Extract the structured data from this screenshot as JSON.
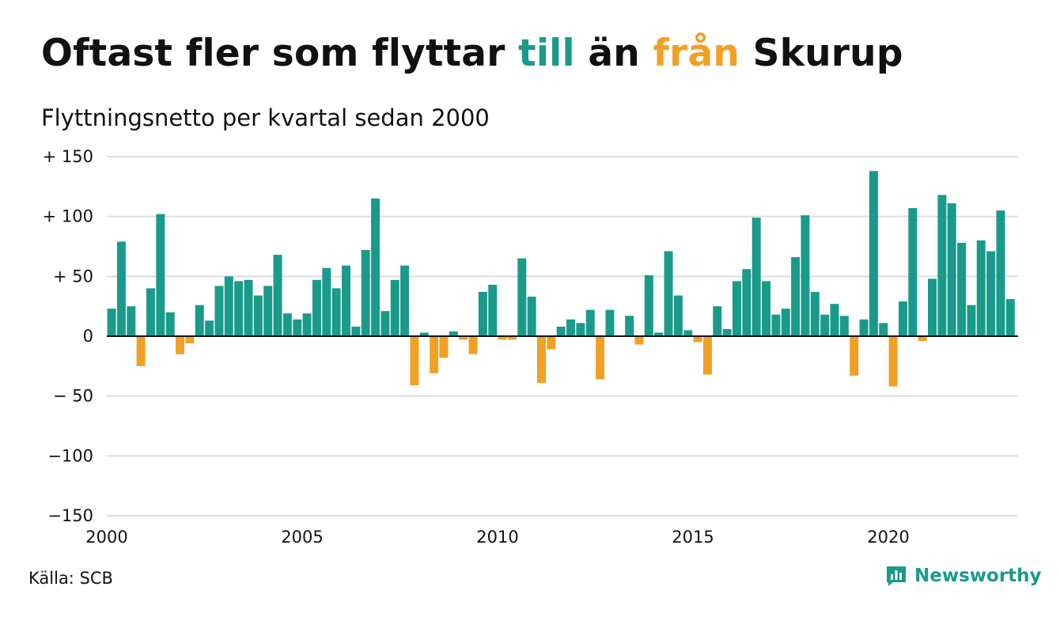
{
  "title": {
    "part1": "Oftast fler som flyttar ",
    "till": "till",
    "part2": " än ",
    "fran": "från",
    "part3": " Skurup"
  },
  "subtitle": "Flyttningsnetto per kvartal sedan 2000",
  "source": "Källa: SCB",
  "brand": "Newsworthy",
  "colors": {
    "positive": "#1a9a8a",
    "negative": "#f2a023",
    "grid": "#dddddd",
    "axis": "#111111"
  },
  "chart_data": {
    "type": "bar",
    "x_start": 2000,
    "periods_per_year": 4,
    "x_ticks": [
      "2000",
      "2005",
      "2010",
      "2015",
      "2020"
    ],
    "y_ticks": [
      "+ 150",
      "+ 100",
      "+  50",
      "0",
      "− 50",
      "−100",
      "−150"
    ],
    "ylim": [
      -150,
      150
    ],
    "values": [
      23,
      79,
      25,
      -25,
      40,
      102,
      20,
      -15,
      -6,
      26,
      13,
      42,
      50,
      46,
      47,
      34,
      42,
      68,
      19,
      14,
      19,
      47,
      57,
      40,
      59,
      8,
      72,
      115,
      21,
      47,
      59,
      -41,
      3,
      -31,
      -18,
      4,
      -3,
      -15,
      37,
      43,
      -3,
      -3,
      65,
      33,
      -39,
      -11,
      8,
      14,
      11,
      22,
      -36,
      22,
      0,
      17,
      -7,
      51,
      3,
      71,
      34,
      5,
      -5,
      -32,
      25,
      6,
      46,
      56,
      99,
      46,
      18,
      23,
      66,
      101,
      37,
      18,
      27,
      17,
      -33,
      14,
      138,
      11,
      -42,
      29,
      107,
      -4,
      48,
      118,
      111,
      78,
      26,
      80,
      71,
      105,
      31
    ]
  }
}
